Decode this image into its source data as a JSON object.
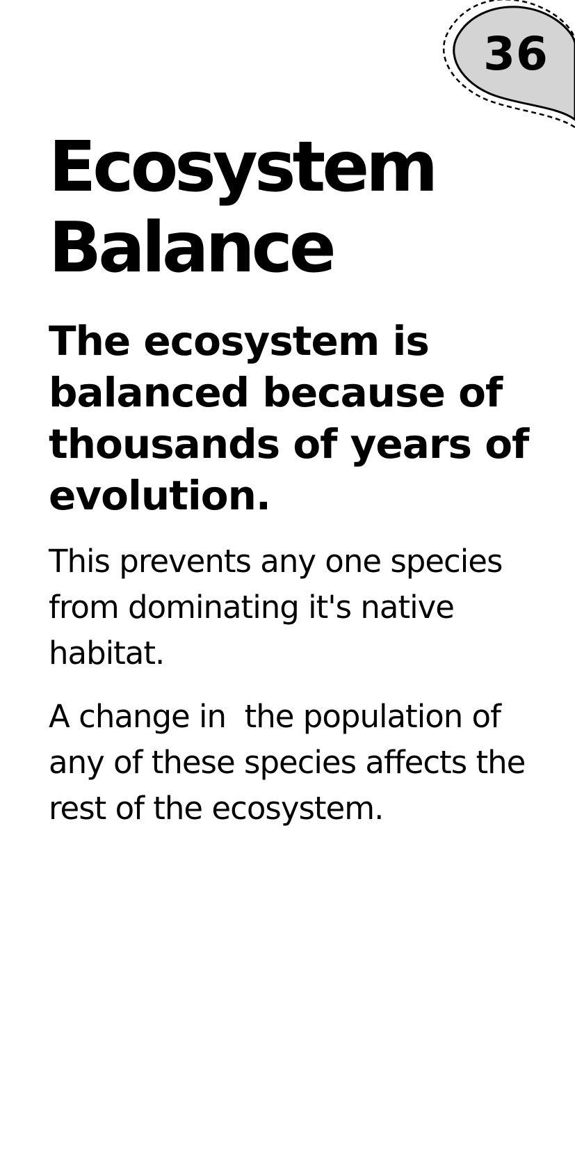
{
  "page": {
    "number": "36",
    "title": "Ecosystem Balance",
    "subtitle": "The ecosystem is balanced because of thousands of years of evolution.",
    "paragraphs": [
      "This prevents any one species from dominating it's native habitat.",
      "A change in  the population of any of these species affects the rest of the ecosystem."
    ]
  },
  "colors": {
    "badge_fill": "#d4d4d4",
    "text": "#000000",
    "background": "#ffffff"
  }
}
